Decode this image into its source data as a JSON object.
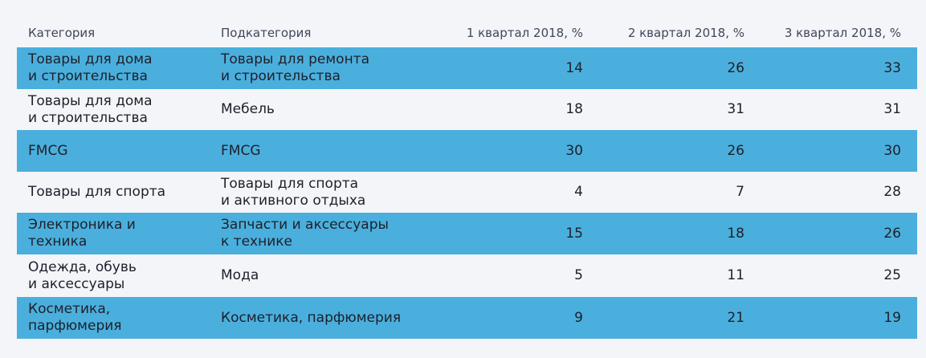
{
  "table": {
    "headers": {
      "category": "Категория",
      "subcategory": "Подкатегория",
      "q1": "1 квартал 2018, %",
      "q2": "2 квартал 2018, %",
      "q3": "3 квартал 2018, %"
    },
    "rows": [
      {
        "category": "Товары для дома\nи строительства",
        "subcategory": "Товары для ремонта\nи строительства",
        "q1": "14",
        "q2": "26",
        "q3": "33"
      },
      {
        "category": "Товары для дома\nи строительства",
        "subcategory": "Мебель",
        "q1": "18",
        "q2": "31",
        "q3": "31"
      },
      {
        "category": "FMCG",
        "subcategory": "FMCG",
        "q1": "30",
        "q2": "26",
        "q3": "30"
      },
      {
        "category": "Товары для спорта",
        "subcategory": "Товары для спорта\nи активного отдыха",
        "q1": "4",
        "q2": "7",
        "q3": "28"
      },
      {
        "category": "Электроника и\nтехника",
        "subcategory": "Запчасти и аксессуары\nк технике",
        "q1": "15",
        "q2": "18",
        "q3": "26"
      },
      {
        "category": "Одежда, обувь\nи аксессуары",
        "subcategory": "Мода",
        "q1": "5",
        "q2": "11",
        "q3": "25"
      },
      {
        "category": "Косметика,\nпарфюмерия",
        "subcategory": "Косметика, парфюмерия",
        "q1": "9",
        "q2": "21",
        "q3": "19"
      }
    ]
  },
  "colors": {
    "shaded_row": "#4aafdc",
    "background": "#f4f5f9",
    "text": "#1f1f2b"
  }
}
